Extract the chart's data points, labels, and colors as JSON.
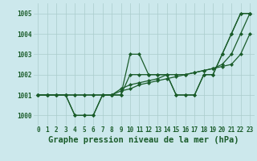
{
  "title": "Graphe pression niveau de la mer (hPa)",
  "bg_color": "#cce8ec",
  "grid_color": "#aacccc",
  "line_color": "#1a5c2a",
  "x_ticks": [
    0,
    1,
    2,
    3,
    4,
    5,
    6,
    7,
    8,
    9,
    10,
    11,
    12,
    13,
    14,
    15,
    16,
    17,
    18,
    19,
    20,
    21,
    22,
    23
  ],
  "ylim": [
    999.5,
    1005.5
  ],
  "yticks": [
    1000,
    1001,
    1002,
    1003,
    1004,
    1005
  ],
  "series": [
    [
      1001,
      1001,
      1001,
      1001,
      1000,
      1000,
      1000,
      1001,
      1001,
      1001,
      1003,
      1003,
      1002,
      1002,
      1002,
      1001,
      1001,
      1001,
      1002,
      1002,
      1003,
      1004,
      1005,
      1005
    ],
    [
      1001,
      1001,
      1001,
      1001,
      1000,
      1000,
      1000,
      1001,
      1001,
      1001,
      1002,
      1002,
      1002,
      1002,
      1002,
      1001,
      1001,
      1001,
      1002,
      1002,
      1003,
      1004,
      1005,
      1005
    ],
    [
      1001,
      1001,
      1001,
      1001,
      1001,
      1001,
      1001,
      1001,
      1001,
      1001.3,
      1001.5,
      1001.6,
      1001.7,
      1001.8,
      1002,
      1002,
      1002,
      1002.1,
      1002.2,
      1002.3,
      1002.5,
      1003,
      1004,
      1005
    ],
    [
      1001,
      1001,
      1001,
      1001,
      1001,
      1001,
      1001,
      1001,
      1001,
      1001.2,
      1001.3,
      1001.5,
      1001.6,
      1001.7,
      1001.8,
      1001.9,
      1002,
      1002.1,
      1002.2,
      1002.3,
      1002.4,
      1002.5,
      1003,
      1004
    ]
  ],
  "title_fontsize": 7.5,
  "tick_fontsize": 5.5,
  "figsize": [
    3.2,
    2.0
  ],
  "dpi": 100
}
